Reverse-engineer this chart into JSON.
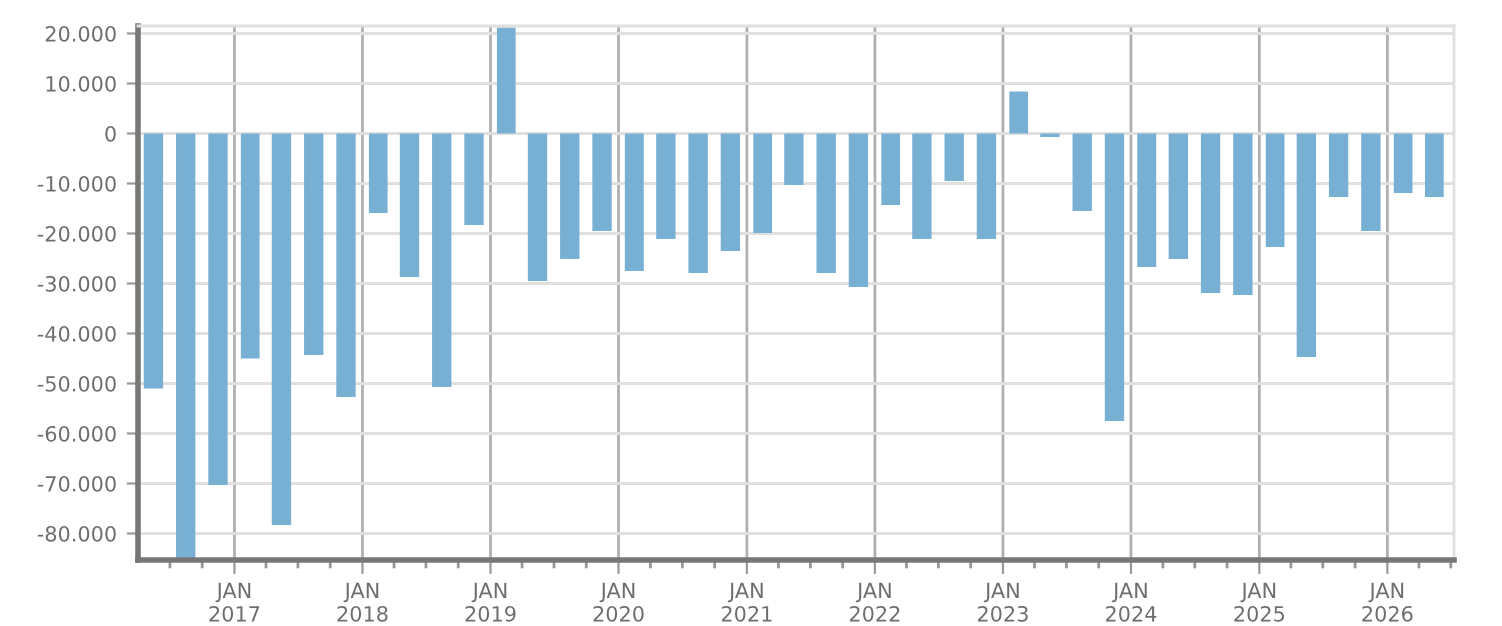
{
  "chart_data": {
    "type": "bar",
    "color": "#78b0d3",
    "grid": true,
    "x": [
      "2016-05-15",
      "2016-08-15",
      "2016-11-15",
      "2017-02-15",
      "2017-05-15",
      "2017-08-15",
      "2017-11-15",
      "2018-02-15",
      "2018-05-15",
      "2018-08-15",
      "2018-11-15",
      "2019-02-15",
      "2019-05-15",
      "2019-08-15",
      "2019-11-15",
      "2020-02-15",
      "2020-05-15",
      "2020-08-15",
      "2020-11-15",
      "2021-02-15",
      "2021-05-15",
      "2021-08-15",
      "2021-11-15",
      "2022-02-15",
      "2022-05-15",
      "2022-08-15",
      "2022-11-15",
      "2023-02-15",
      "2023-05-15",
      "2023-08-15",
      "2023-11-15",
      "2024-02-15",
      "2024-05-15",
      "2024-08-15",
      "2024-11-15",
      "2025-02-15",
      "2025-05-15",
      "2025-08-15",
      "2025-11-15",
      "2026-02-15",
      "2026-05-15"
    ],
    "values": [
      -51000,
      -85000,
      -70300,
      -45000,
      -78300,
      -44300,
      -52700,
      -15900,
      -28700,
      -50700,
      -18300,
      21200,
      -29500,
      -25100,
      -19500,
      -27500,
      -21100,
      -27900,
      -23500,
      -19900,
      -10300,
      -27900,
      -30700,
      -14300,
      -21100,
      -9500,
      -21100,
      8400,
      -700,
      -15500,
      -57500,
      -26700,
      -25100,
      -31900,
      -32300,
      -22700,
      -44700,
      -12700,
      -19500,
      -11900,
      -12700
    ],
    "xlim": [
      "2016-04-01",
      "2026-07-10"
    ],
    "xticks": [
      {
        "value": "2016-07",
        "label": null
      },
      {
        "value": "2016-10",
        "label": null
      },
      {
        "value": "2017-01",
        "label": "JAN\n2017"
      },
      {
        "value": "2017-04",
        "label": null
      },
      {
        "value": "2017-07",
        "label": null
      },
      {
        "value": "2017-10",
        "label": null
      },
      {
        "value": "2018-01",
        "label": "JAN\n2018"
      },
      {
        "value": "2018-04",
        "label": null
      },
      {
        "value": "2018-07",
        "label": null
      },
      {
        "value": "2018-10",
        "label": null
      },
      {
        "value": "2019-01",
        "label": "JAN\n2019"
      },
      {
        "value": "2019-04",
        "label": null
      },
      {
        "value": "2019-07",
        "label": null
      },
      {
        "value": "2019-10",
        "label": null
      },
      {
        "value": "2020-01",
        "label": "JAN\n2020"
      },
      {
        "value": "2020-04",
        "label": null
      },
      {
        "value": "2020-07",
        "label": null
      },
      {
        "value": "2020-10",
        "label": null
      },
      {
        "value": "2021-01",
        "label": "JAN\n2021"
      },
      {
        "value": "2021-04",
        "label": null
      },
      {
        "value": "2021-07",
        "label": null
      },
      {
        "value": "2021-10",
        "label": null
      },
      {
        "value": "2022-01",
        "label": "JAN\n2022"
      },
      {
        "value": "2022-04",
        "label": null
      },
      {
        "value": "2022-07",
        "label": null
      },
      {
        "value": "2022-10",
        "label": null
      },
      {
        "value": "2023-01",
        "label": "JAN\n2023"
      },
      {
        "value": "2023-04",
        "label": null
      },
      {
        "value": "2023-07",
        "label": null
      },
      {
        "value": "2023-10",
        "label": null
      },
      {
        "value": "2024-01",
        "label": "JAN\n2024"
      },
      {
        "value": "2024-04",
        "label": null
      },
      {
        "value": "2024-07",
        "label": null
      },
      {
        "value": "2024-10",
        "label": null
      },
      {
        "value": "2025-01",
        "label": "JAN\n2025"
      },
      {
        "value": "2025-04",
        "label": null
      },
      {
        "value": "2025-07",
        "label": null
      },
      {
        "value": "2025-10",
        "label": null
      },
      {
        "value": "2026-01",
        "label": "JAN\n2026"
      },
      {
        "value": "2026-04",
        "label": null
      },
      {
        "value": "2026-07",
        "label": null
      }
    ],
    "ylim": [
      -85300,
      21500
    ],
    "yticks": [
      {
        "value": 20000,
        "label": "20.000"
      },
      {
        "value": 10000,
        "label": "10.000"
      },
      0,
      {
        "value": -10000,
        "label": "-10.000"
      },
      {
        "value": -20000,
        "label": "-20.000"
      },
      {
        "value": -30000,
        "label": "-30.000"
      },
      {
        "value": -40000,
        "label": "-40.000"
      },
      {
        "value": -50000,
        "label": "-50.000"
      },
      {
        "value": -60000,
        "label": "-60.000"
      },
      {
        "value": -70000,
        "label": "-70.000"
      },
      {
        "value": -80000,
        "label": "-80.000"
      }
    ]
  }
}
